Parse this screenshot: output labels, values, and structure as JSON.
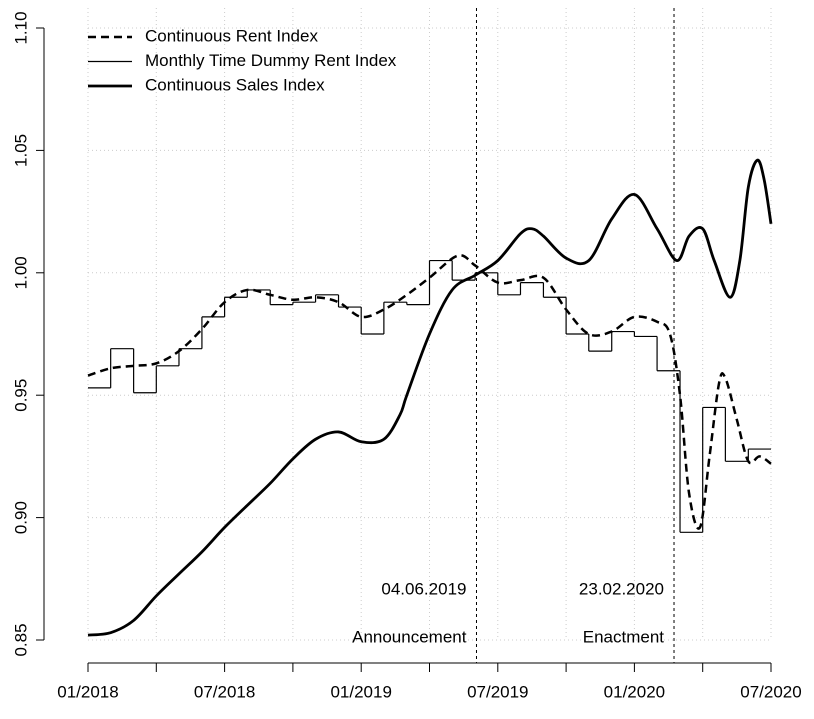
{
  "chart_data": {
    "type": "line",
    "xlim": [
      2018,
      2020.5
    ],
    "ylim": [
      0.85,
      1.1
    ],
    "yticks": [
      0.85,
      {
        "value": 0.9,
        "label": "0.90"
      },
      0.95,
      {
        "value": 1.0,
        "label": "1.00"
      },
      1.05,
      {
        "value": 1.1,
        "label": "1.10"
      }
    ],
    "xticks": [
      {
        "value": 2018,
        "label": "01/2018"
      },
      {
        "value": 2018.25,
        "label": null
      },
      {
        "value": 2018.5,
        "label": "07/2018"
      },
      {
        "value": 2018.75,
        "label": null
      },
      {
        "value": 2019,
        "label": "01/2019"
      },
      {
        "value": 2019.25,
        "label": null
      },
      {
        "value": 2019.5,
        "label": "07/2019"
      },
      {
        "value": 2019.75,
        "label": null
      },
      {
        "value": 2020,
        "label": "01/2020"
      },
      {
        "value": 2020.25,
        "label": null
      },
      {
        "value": 2020.5,
        "label": "07/2020"
      }
    ],
    "grid": true,
    "legend": "top-left",
    "series": [
      {
        "name": "Continuous Rent Index",
        "color": "#000000",
        "style": "dashed",
        "x": [
          2018,
          2018.083,
          2018.167,
          2018.25,
          2018.333,
          2018.417,
          2018.5,
          2018.583,
          2018.667,
          2018.75,
          2018.833,
          2018.917,
          2019,
          2019.083,
          2019.167,
          2019.25,
          2019.354,
          2019.417,
          2019.5,
          2019.583,
          2019.667,
          2019.75,
          2019.833,
          2019.917,
          2020,
          2020.083,
          2020.13,
          2020.167,
          2020.2,
          2020.24,
          2020.275,
          2020.31,
          2020.333,
          2020.375,
          2020.417,
          2020.458,
          2020.5
        ],
        "values": [
          0.958,
          0.961,
          0.962,
          0.963,
          0.968,
          0.977,
          0.988,
          0.993,
          0.991,
          0.989,
          0.99,
          0.988,
          0.982,
          0.985,
          0.991,
          0.998,
          1.007,
          1.003,
          0.996,
          0.997,
          0.998,
          0.985,
          0.975,
          0.976,
          0.982,
          0.98,
          0.975,
          0.95,
          0.91,
          0.896,
          0.925,
          0.955,
          0.957,
          0.94,
          0.923,
          0.925,
          0.922
        ]
      },
      {
        "name": "Monthly Time Dummy Rent Index",
        "color": "#000000",
        "style": "step",
        "x": [
          2018,
          2018.083,
          2018.167,
          2018.25,
          2018.333,
          2018.417,
          2018.5,
          2018.583,
          2018.667,
          2018.75,
          2018.833,
          2018.917,
          2019,
          2019.083,
          2019.167,
          2019.25,
          2019.333,
          2019.417,
          2019.5,
          2019.583,
          2019.667,
          2019.75,
          2019.833,
          2019.917,
          2020,
          2020.083,
          2020.167,
          2020.25,
          2020.333,
          2020.417
        ],
        "values": [
          0.953,
          0.969,
          0.951,
          0.962,
          0.969,
          0.982,
          0.99,
          0.993,
          0.987,
          0.988,
          0.991,
          0.986,
          0.975,
          0.988,
          0.987,
          1.005,
          0.997,
          1.0,
          0.991,
          0.996,
          0.99,
          0.975,
          0.968,
          0.976,
          0.974,
          0.96,
          0.894,
          0.945,
          0.923,
          0.928
        ]
      },
      {
        "name": "Continuous Sales Index",
        "color": "#000000",
        "style": "thick",
        "x": [
          2018,
          2018.083,
          2018.167,
          2018.25,
          2018.333,
          2018.417,
          2018.5,
          2018.583,
          2018.667,
          2018.75,
          2018.833,
          2018.917,
          2019,
          2019.083,
          2019.142,
          2019.167,
          2019.25,
          2019.333,
          2019.417,
          2019.5,
          2019.583,
          2019.625,
          2019.667,
          2019.75,
          2019.833,
          2019.917,
          2020,
          2020.083,
          2020.155,
          2020.2,
          2020.25,
          2020.292,
          2020.35,
          2020.386,
          2020.417,
          2020.45,
          2020.475,
          2020.5
        ],
        "values": [
          0.852,
          0.853,
          0.858,
          0.868,
          0.877,
          0.886,
          0.896,
          0.905,
          0.914,
          0.924,
          0.932,
          0.935,
          0.931,
          0.932,
          0.942,
          0.95,
          0.975,
          0.993,
          0.999,
          1.005,
          1.016,
          1.018,
          1.015,
          1.006,
          1.005,
          1.022,
          1.032,
          1.018,
          1.005,
          1.015,
          1.018,
          1.005,
          0.99,
          1.005,
          1.035,
          1.046,
          1.038,
          1.02
        ]
      }
    ],
    "vlines": [
      {
        "x": 2019.422,
        "date": "04.06.2019",
        "text": "Announcement"
      },
      {
        "x": 2020.145,
        "date": "23.02.2020",
        "text": "Enactment"
      }
    ]
  }
}
